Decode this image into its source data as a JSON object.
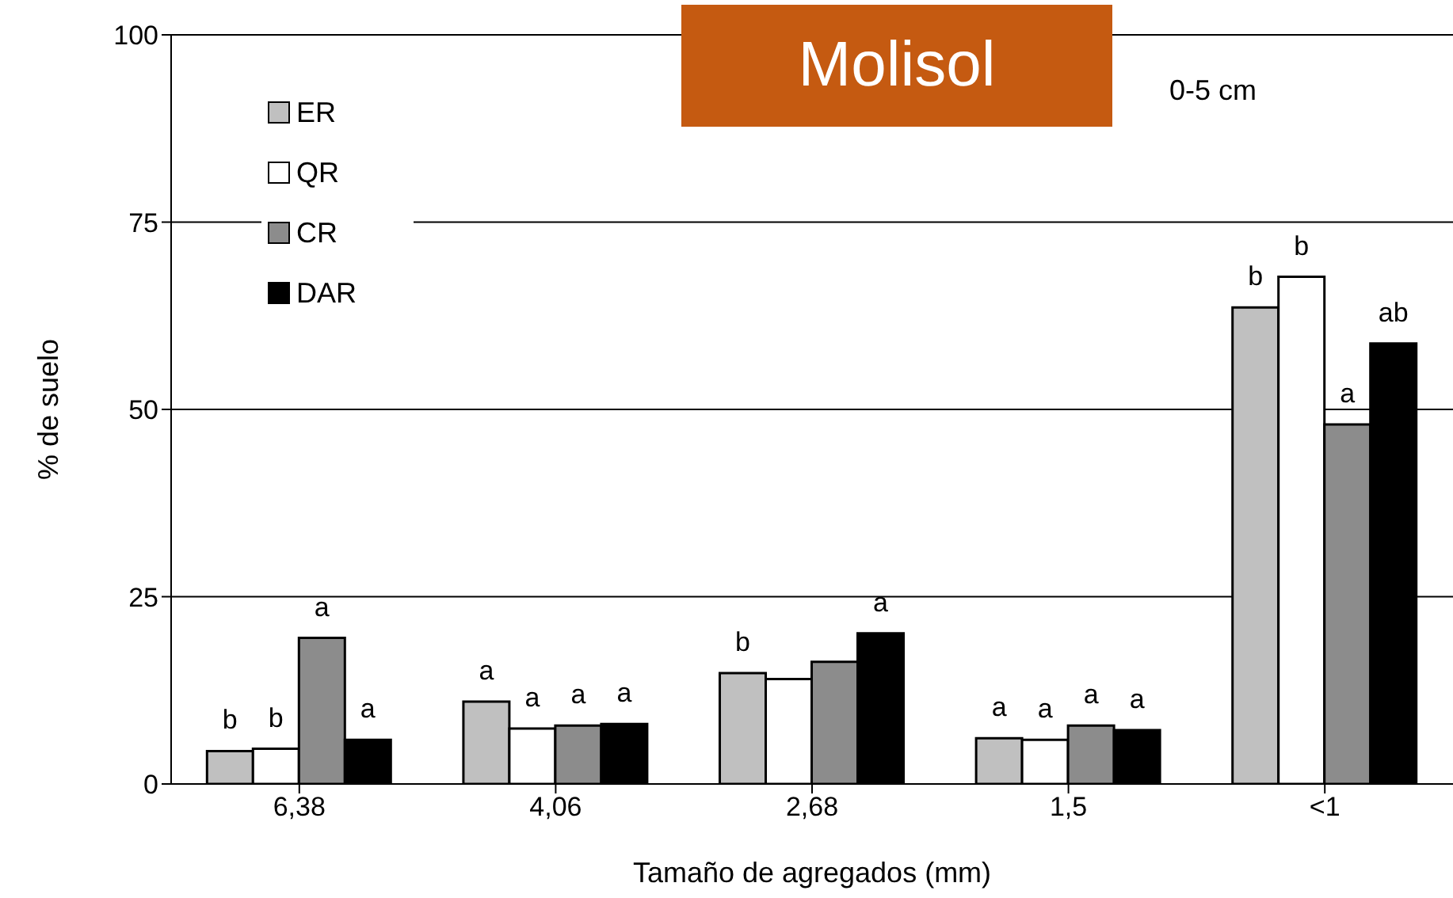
{
  "chart_data": {
    "type": "bar",
    "title": "Molisol",
    "annotations": [
      "0-5 cm"
    ],
    "xlabel": "Tamaño de agregados (mm)",
    "ylabel": "% de suelo",
    "categories": [
      "6,38",
      "4,06",
      "2,68",
      "1,5",
      "<1"
    ],
    "series": [
      {
        "name": "ER",
        "color": "#c0c0c0",
        "values": [
          4.4,
          11.0,
          14.8,
          6.1,
          63.6
        ],
        "value_labels": [
          "b",
          "a",
          "b",
          "a",
          "b"
        ]
      },
      {
        "name": "QR",
        "color": "#ffffff",
        "values": [
          4.7,
          7.4,
          14.0,
          5.9,
          67.7
        ],
        "value_labels": [
          "b",
          "a",
          null,
          "a",
          "b"
        ]
      },
      {
        "name": "CR",
        "color": "#8c8c8c",
        "values": [
          19.5,
          7.8,
          16.3,
          7.8,
          48.0
        ],
        "value_labels": [
          "a",
          "a",
          null,
          "a",
          "a"
        ]
      },
      {
        "name": "DAR",
        "color": "#000000",
        "values": [
          5.9,
          8.0,
          20.1,
          7.2,
          58.8
        ],
        "value_labels": [
          "a",
          "a",
          "a",
          "a",
          "ab"
        ]
      }
    ],
    "ylim": [
      0,
      100
    ],
    "yticks": [
      0,
      25,
      50,
      75,
      100
    ],
    "grid": "y",
    "legend": "top left"
  }
}
